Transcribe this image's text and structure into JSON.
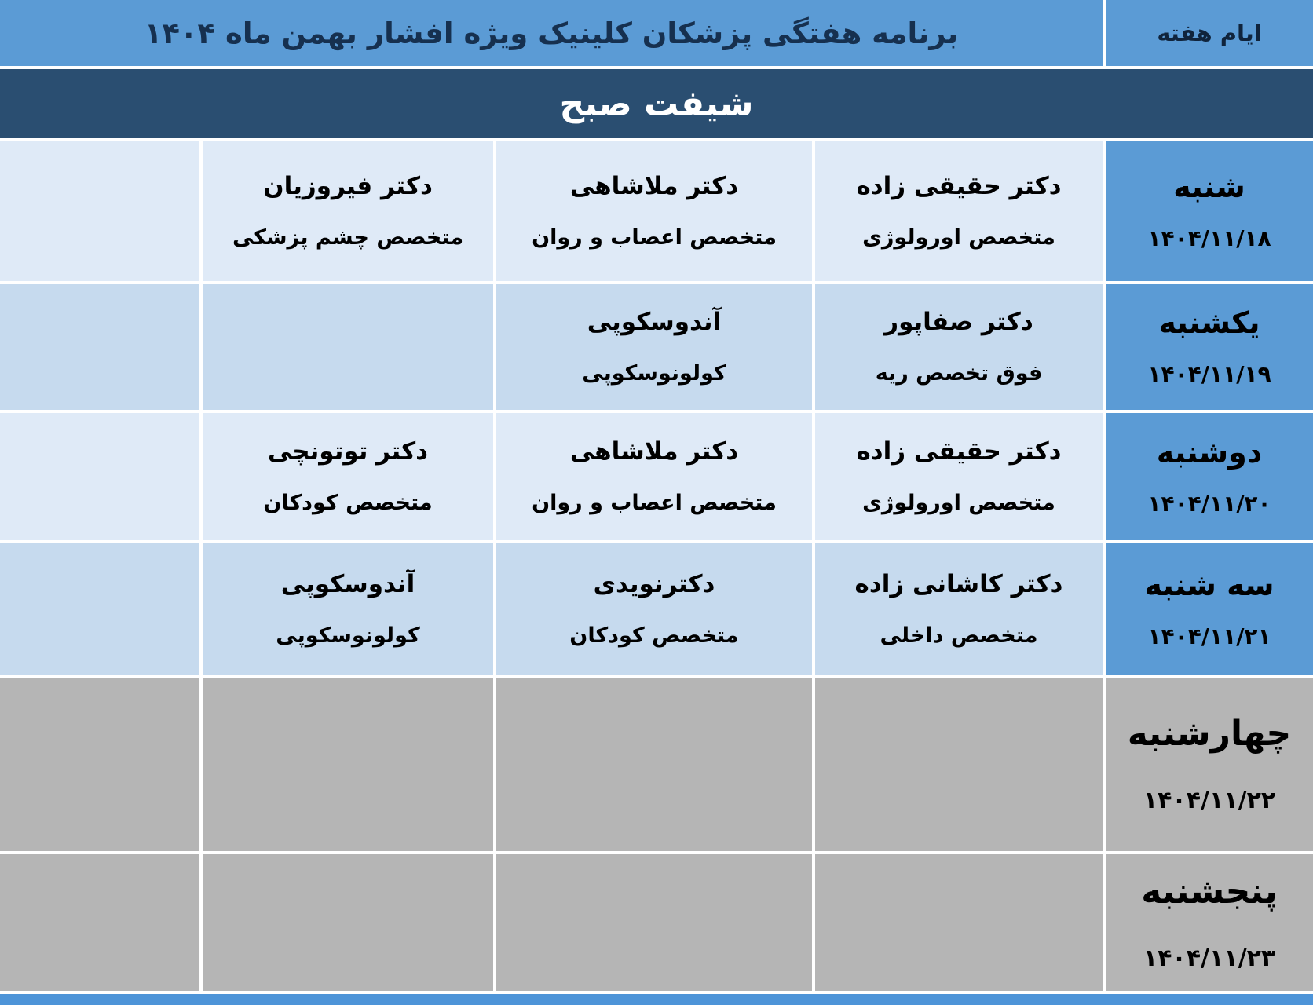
{
  "header": {
    "title": "برنامه هفتگی پزشکان کلینیک ویژه افشار بهمن ماه ۱۴۰۴",
    "days_column_label": "ایام هفته"
  },
  "shift_banner": {
    "label": "شیفت صبح"
  },
  "colors": {
    "header_bg": "#5b9bd5",
    "header_text": "#16304f",
    "banner_bg": "#2a4e71",
    "banner_text": "#ffffff",
    "day_cell_bg": "#5b9bd5",
    "row_light_bg": "#dfeaf7",
    "row_medium_bg": "#c6daee",
    "empty_row_bg": "#b5b5b5",
    "grid_line": "#ffffff",
    "cell_text": "#000000",
    "bottom_strip": "#4d94d8"
  },
  "schedule": {
    "rows": [
      {
        "day": "شنبه",
        "date": "۱۴۰۴/۱۱/۱۸",
        "cells": [
          {
            "doctor": "دکتر حقیقی زاده",
            "specialty": "متخصص اورولوژی"
          },
          {
            "doctor": "دکتر ملاشاهی",
            "specialty": "متخصص اعصاب و روان"
          },
          {
            "doctor": "دکتر فیروزیان",
            "specialty": "متخصص چشم پزشکی"
          }
        ]
      },
      {
        "day": "یکشنبه",
        "date": "۱۴۰۴/۱۱/۱۹",
        "cells": [
          {
            "doctor": "دکتر صفاپور",
            "specialty": "فوق تخصص ریه"
          },
          {
            "doctor": "آندوسکوپی",
            "specialty": "کولونوسکوپی"
          }
        ]
      },
      {
        "day": "دوشنبه",
        "date": "۱۴۰۴/۱۱/۲۰",
        "cells": [
          {
            "doctor": "دکتر حقیقی زاده",
            "specialty": "متخصص اورولوژی"
          },
          {
            "doctor": "دکتر ملاشاهی",
            "specialty": "متخصص اعصاب و روان"
          },
          {
            "doctor": "دکتر توتونچی",
            "specialty": "متخصص کودکان"
          }
        ]
      },
      {
        "day": "سه شنبه",
        "date": "۱۴۰۴/۱۱/۲۱",
        "cells": [
          {
            "doctor": "دکتر کاشانی زاده",
            "specialty": "متخصص داخلی"
          },
          {
            "doctor": "دکترنویدی",
            "specialty": "متخصص کودکان"
          },
          {
            "doctor": "آندوسکوپی",
            "specialty": "کولونوسکوپی"
          }
        ]
      },
      {
        "day": "چهارشنبه",
        "date": "۱۴۰۴/۱۱/۲۲",
        "cells": []
      },
      {
        "day": "پنجشنبه",
        "date": "۱۴۰۴/۱۱/۲۳",
        "cells": []
      }
    ]
  }
}
